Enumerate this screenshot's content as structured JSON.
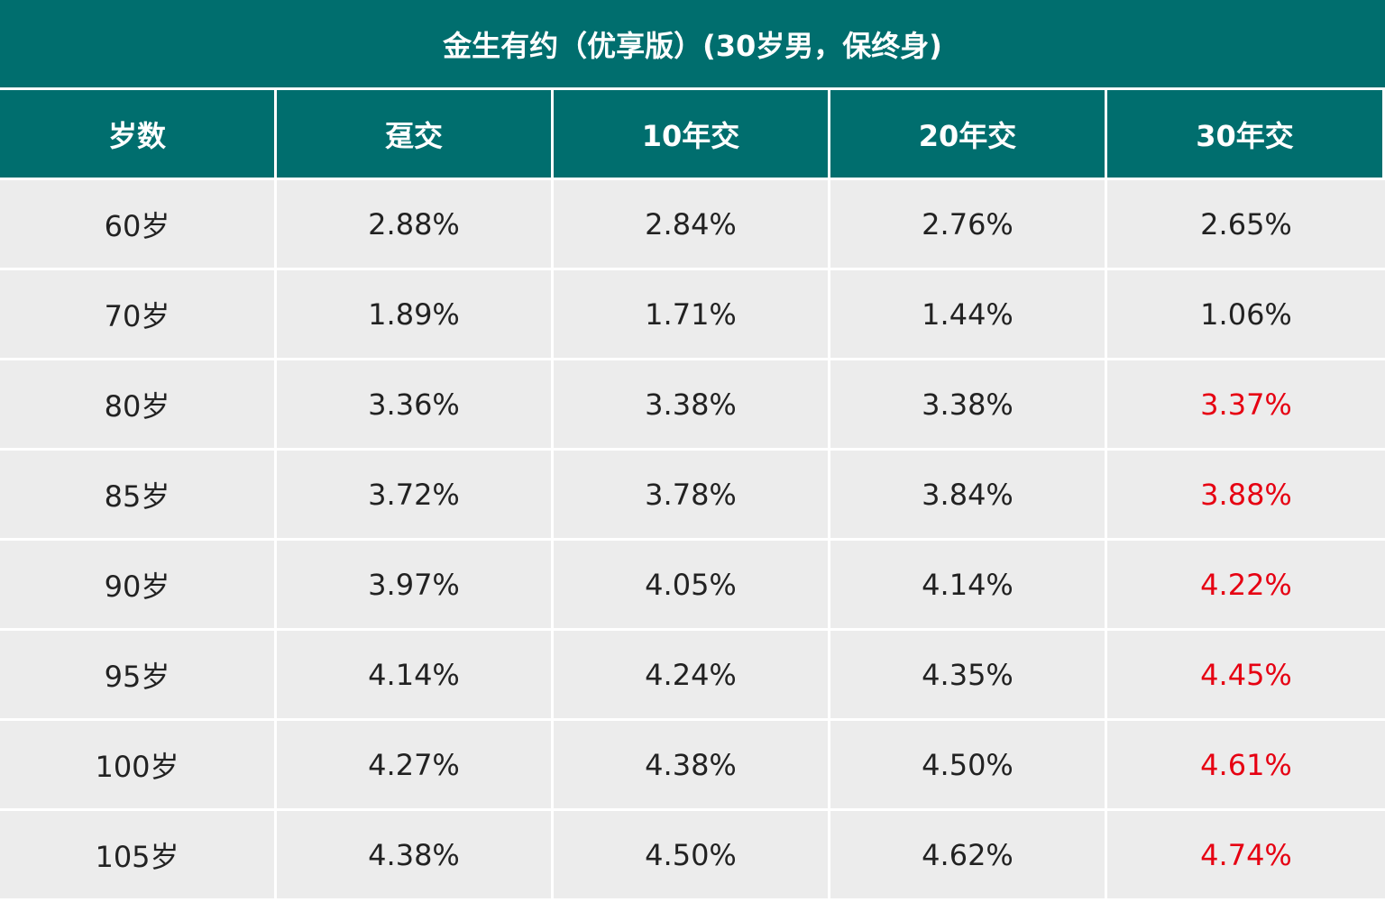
{
  "table": {
    "title": "金生有约（优享版）(30岁男，保终身)",
    "headers": [
      "岁数",
      "趸交",
      "10年交",
      "20年交",
      "30年交"
    ],
    "highlight_color": "#E60012",
    "header_bg": "#006E6E",
    "rows": [
      {
        "age": "60岁",
        "cells": [
          "2.88%",
          "2.84%",
          "2.76%",
          "2.65%"
        ],
        "highlight": false
      },
      {
        "age": "70岁",
        "cells": [
          "1.89%",
          "1.71%",
          "1.44%",
          "1.06%"
        ],
        "highlight": false
      },
      {
        "age": "80岁",
        "cells": [
          "3.36%",
          "3.38%",
          "3.38%",
          "3.37%"
        ],
        "highlight": true
      },
      {
        "age": "85岁",
        "cells": [
          "3.72%",
          "3.78%",
          "3.84%",
          "3.88%"
        ],
        "highlight": true
      },
      {
        "age": "90岁",
        "cells": [
          "3.97%",
          "4.05%",
          "4.14%",
          "4.22%"
        ],
        "highlight": true
      },
      {
        "age": "95岁",
        "cells": [
          "4.14%",
          "4.24%",
          "4.35%",
          "4.45%"
        ],
        "highlight": true
      },
      {
        "age": "100岁",
        "cells": [
          "4.27%",
          "4.38%",
          "4.50%",
          "4.61%"
        ],
        "highlight": true
      },
      {
        "age": "105岁",
        "cells": [
          "4.38%",
          "4.50%",
          "4.62%",
          "4.74%"
        ],
        "highlight": true
      }
    ]
  },
  "chart_data": {
    "type": "table",
    "title": "金生有约（优享版）(30岁男，保终身)",
    "columns": [
      "岁数",
      "趸交",
      "10年交",
      "20年交",
      "30年交"
    ],
    "categories": [
      "60岁",
      "70岁",
      "80岁",
      "85岁",
      "90岁",
      "95岁",
      "100岁",
      "105岁"
    ],
    "series": [
      {
        "name": "趸交",
        "values": [
          2.88,
          1.89,
          3.36,
          3.72,
          3.97,
          4.14,
          4.27,
          4.38
        ]
      },
      {
        "name": "10年交",
        "values": [
          2.84,
          1.71,
          3.38,
          3.78,
          4.05,
          4.24,
          4.38,
          4.5
        ]
      },
      {
        "name": "20年交",
        "values": [
          2.76,
          1.44,
          3.38,
          3.84,
          4.14,
          4.35,
          4.5,
          4.62
        ]
      },
      {
        "name": "30年交",
        "values": [
          2.65,
          1.06,
          3.37,
          3.88,
          4.22,
          4.45,
          4.61,
          4.74
        ]
      }
    ],
    "highlighted_cells": "30年交 column, rows 80岁 through 105岁, shown in red"
  }
}
